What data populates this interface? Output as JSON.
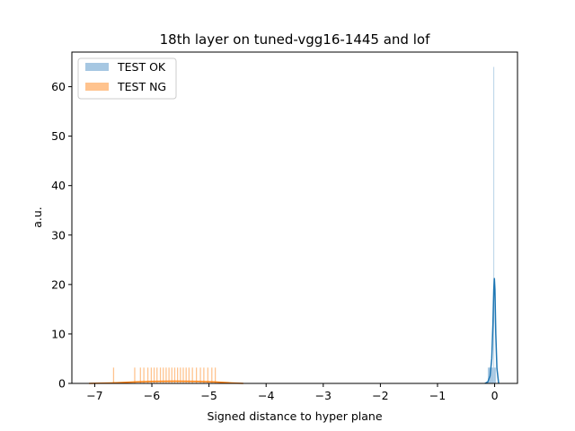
{
  "chart_data": {
    "type": "histogram",
    "title": "18th layer on tuned-vgg16-1445 and lof",
    "xlabel": "Signed distance to hyper plane",
    "ylabel": "a.u.",
    "xlim": [
      -7.4,
      0.4
    ],
    "ylim": [
      0,
      67
    ],
    "xticks": [
      -7,
      -6,
      -5,
      -4,
      -3,
      -2,
      -1,
      0
    ],
    "xtick_labels": [
      "−7",
      "−6",
      "−5",
      "−4",
      "−3",
      "−2",
      "−1",
      "0"
    ],
    "yticks": [
      0,
      10,
      20,
      30,
      40,
      50,
      60
    ],
    "ytick_labels": [
      "0",
      "10",
      "20",
      "30",
      "40",
      "50",
      "60"
    ],
    "grid": false,
    "legend_position": "top-left",
    "colors": {
      "ok": "#1f77b4",
      "ng": "#ff7f0e",
      "ok_fill": "#a6c7e2",
      "ng_fill": "#ffc38e"
    },
    "series": [
      {
        "name": "TEST OK",
        "kind": "histogram",
        "bins": [
          {
            "x0": -0.12,
            "x1": -0.05,
            "y": 3.2
          },
          {
            "x0": -0.05,
            "x1": -0.02,
            "y": 3.2
          },
          {
            "x0": -0.02,
            "x1": -0.015,
            "y": 64
          },
          {
            "x0": -0.015,
            "x1": 0.02,
            "y": 3.2
          }
        ],
        "kde": [
          [
            -0.17,
            0
          ],
          [
            -0.12,
            0.3
          ],
          [
            -0.08,
            1.5
          ],
          [
            -0.05,
            5
          ],
          [
            -0.03,
            12
          ],
          [
            -0.015,
            19
          ],
          [
            -0.005,
            21.3
          ],
          [
            0.005,
            19
          ],
          [
            0.02,
            10
          ],
          [
            0.04,
            3
          ],
          [
            0.07,
            0
          ]
        ]
      },
      {
        "name": "TEST NG",
        "kind": "histogram",
        "bins": [
          {
            "x0": -6.68,
            "x1": -6.66,
            "y": 3.2
          },
          {
            "x0": -6.31,
            "x1": -6.29,
            "y": 3.2
          },
          {
            "x0": -6.21,
            "x1": -6.19,
            "y": 3.2
          },
          {
            "x0": -6.15,
            "x1": -6.13,
            "y": 3.2
          },
          {
            "x0": -6.08,
            "x1": -6.06,
            "y": 3.2
          },
          {
            "x0": -6.02,
            "x1": -6.0,
            "y": 3.2
          },
          {
            "x0": -5.97,
            "x1": -5.95,
            "y": 3.2
          },
          {
            "x0": -5.92,
            "x1": -5.9,
            "y": 3.2
          },
          {
            "x0": -5.86,
            "x1": -5.84,
            "y": 3.2
          },
          {
            "x0": -5.81,
            "x1": -5.79,
            "y": 3.2
          },
          {
            "x0": -5.76,
            "x1": -5.74,
            "y": 3.2
          },
          {
            "x0": -5.71,
            "x1": -5.69,
            "y": 3.2
          },
          {
            "x0": -5.66,
            "x1": -5.64,
            "y": 3.2
          },
          {
            "x0": -5.61,
            "x1": -5.59,
            "y": 3.2
          },
          {
            "x0": -5.56,
            "x1": -5.54,
            "y": 3.2
          },
          {
            "x0": -5.51,
            "x1": -5.49,
            "y": 3.2
          },
          {
            "x0": -5.46,
            "x1": -5.44,
            "y": 3.2
          },
          {
            "x0": -5.41,
            "x1": -5.39,
            "y": 3.2
          },
          {
            "x0": -5.36,
            "x1": -5.34,
            "y": 3.2
          },
          {
            "x0": -5.3,
            "x1": -5.28,
            "y": 3.2
          },
          {
            "x0": -5.23,
            "x1": -5.21,
            "y": 3.2
          },
          {
            "x0": -5.16,
            "x1": -5.14,
            "y": 3.2
          },
          {
            "x0": -5.1,
            "x1": -5.08,
            "y": 3.2
          },
          {
            "x0": -5.03,
            "x1": -5.01,
            "y": 3.2
          },
          {
            "x0": -4.96,
            "x1": -4.94,
            "y": 3.2
          },
          {
            "x0": -4.9,
            "x1": -4.88,
            "y": 3.2
          }
        ],
        "kde": [
          [
            -7.1,
            0
          ],
          [
            -6.7,
            0.1
          ],
          [
            -6.3,
            0.3
          ],
          [
            -6.0,
            0.4
          ],
          [
            -5.6,
            0.45
          ],
          [
            -5.2,
            0.4
          ],
          [
            -4.9,
            0.3
          ],
          [
            -4.6,
            0.1
          ],
          [
            -4.4,
            0
          ]
        ]
      }
    ]
  }
}
